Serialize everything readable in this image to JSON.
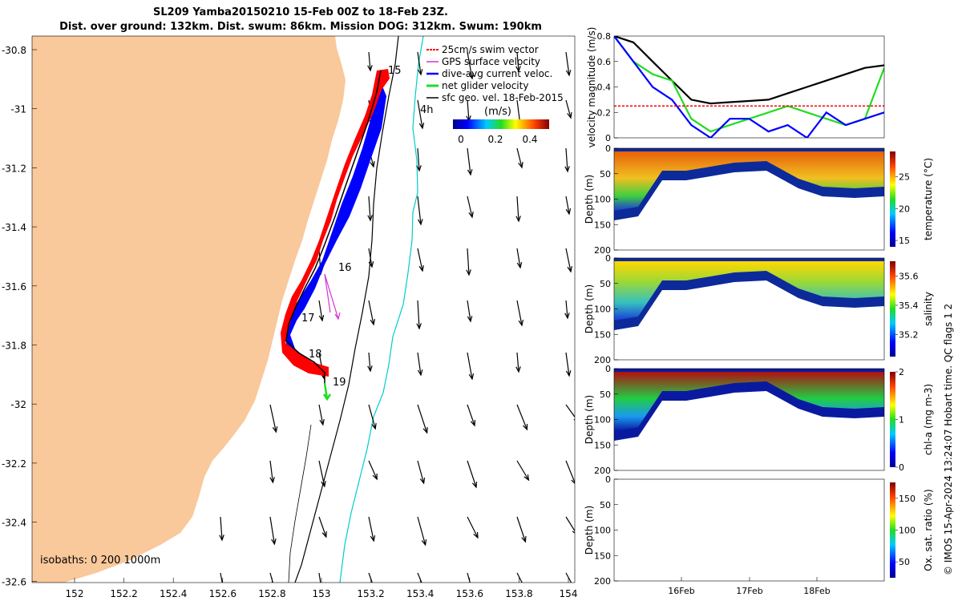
{
  "titles": {
    "line1": "SL209 Yamba20150210 15-Feb 00Z to 18-Feb 23Z.",
    "line2": "Dist. over ground: 132km. Dist. swum: 86km. Mission DOG: 312km. Swum: 190km"
  },
  "stamp": "© IMOS 15-Apr-2024 13:24:07 Hobart time. QC flags 1  2",
  "colors": {
    "land": "#f9c89b",
    "swim_vector": "#ff0000",
    "gps_velocity": "#d633d6",
    "dive_current": "#0000ff",
    "net_glider": "#22dd22",
    "geo_vector": "#000000",
    "isobath_200": "#000000",
    "isobath_1000": "#00cccc"
  },
  "map": {
    "isobaths_label": "isobaths: 0   200  1000m",
    "x_ticks": [
      "152",
      "152.2",
      "152.4",
      "152.6",
      "152.8",
      "153",
      "153.2",
      "153.4",
      "153.6",
      "153.8",
      "154"
    ],
    "y_ticks": [
      "-30.8",
      "-31",
      "-31.2",
      "-31.4",
      "-31.6",
      "-31.8",
      "-32",
      "-32.2",
      "-32.4",
      "-32.6"
    ],
    "legend": [
      {
        "label": "25cm/s swim vector",
        "color": "#ff0000"
      },
      {
        "label": "GPS surface velocity",
        "color": "#d633d6"
      },
      {
        "label": "dive-avg current veloc.",
        "color": "#0000ff"
      },
      {
        "label": "net glider velocity",
        "color": "#22dd22"
      },
      {
        "label": "sfc geo. vel. 18-Feb-2015",
        "color": "#000000"
      }
    ],
    "colorbar": {
      "title": "(m/s)",
      "ticks": [
        "0",
        "0.2",
        "0.4"
      ]
    },
    "day_labels": [
      "15",
      "16",
      "17",
      "18",
      "19"
    ],
    "ref_label": "4h"
  },
  "chart_data": [
    {
      "type": "line",
      "ylabel": "velocity magnitude (m/s)",
      "ylim": [
        0,
        0.8
      ],
      "yticks": [
        "0",
        "0.2",
        "0.4",
        "0.6",
        "0.8"
      ],
      "x_start_day": 15.0,
      "x_end_day": 19.0,
      "series": [
        {
          "color": "#000000",
          "values": [
            0.8,
            0.75,
            0.6,
            0.45,
            0.3,
            0.27,
            0.28,
            0.29,
            0.3,
            0.35,
            0.4,
            0.45,
            0.5,
            0.55,
            0.57
          ]
        },
        {
          "color": "#22dd22",
          "values": [
            0.8,
            0.6,
            0.5,
            0.45,
            0.15,
            0.05,
            0.1,
            0.15,
            0.2,
            0.25,
            0.2,
            0.15,
            0.1,
            0.15,
            0.55
          ]
        },
        {
          "color": "#0000ff",
          "values": [
            0.8,
            0.6,
            0.4,
            0.3,
            0.1,
            0.0,
            0.15,
            0.15,
            0.05,
            0.1,
            0.0,
            0.2,
            0.1,
            0.15,
            0.2
          ]
        },
        {
          "color": "#ff0000",
          "values": [
            0.25,
            0.25,
            0.25,
            0.25,
            0.25,
            0.25,
            0.25,
            0.25,
            0.25,
            0.25,
            0.25,
            0.25,
            0.25,
            0.25,
            0.25
          ]
        }
      ]
    },
    {
      "type": "heatmap",
      "variable": "temperature",
      "ylabel": "Depth (m)",
      "yticks": [
        "0",
        "50",
        "100",
        "150",
        "200"
      ],
      "colorbar_label": "temperature (°C)",
      "colorbar_ticks": [
        "15",
        "20",
        "25"
      ],
      "clim": [
        14,
        29
      ]
    },
    {
      "type": "heatmap",
      "variable": "salinity",
      "ylabel": "Depth (m)",
      "yticks": [
        "0",
        "50",
        "100",
        "150",
        "200"
      ],
      "colorbar_label": "salinity",
      "colorbar_ticks": [
        "35.2",
        "35.4",
        "35.6"
      ],
      "clim": [
        35.05,
        35.7
      ]
    },
    {
      "type": "heatmap",
      "variable": "chl-a",
      "ylabel": "Depth (m)",
      "yticks": [
        "0",
        "50",
        "100",
        "150",
        "200"
      ],
      "colorbar_label": "chl-a (mg m-3)",
      "colorbar_ticks": [
        "0",
        "1",
        "2"
      ],
      "clim": [
        0,
        2
      ]
    },
    {
      "type": "heatmap",
      "variable": "oxygen saturation",
      "ylabel": "Depth (m)",
      "yticks": [
        "0",
        "50",
        "100",
        "150",
        "200"
      ],
      "colorbar_label": "Ox. sat. ratio (%)",
      "colorbar_ticks": [
        "50",
        "100",
        "150"
      ],
      "clim": [
        25,
        175
      ],
      "xticks": [
        "16Feb",
        "17Feb",
        "18Feb"
      ]
    }
  ]
}
